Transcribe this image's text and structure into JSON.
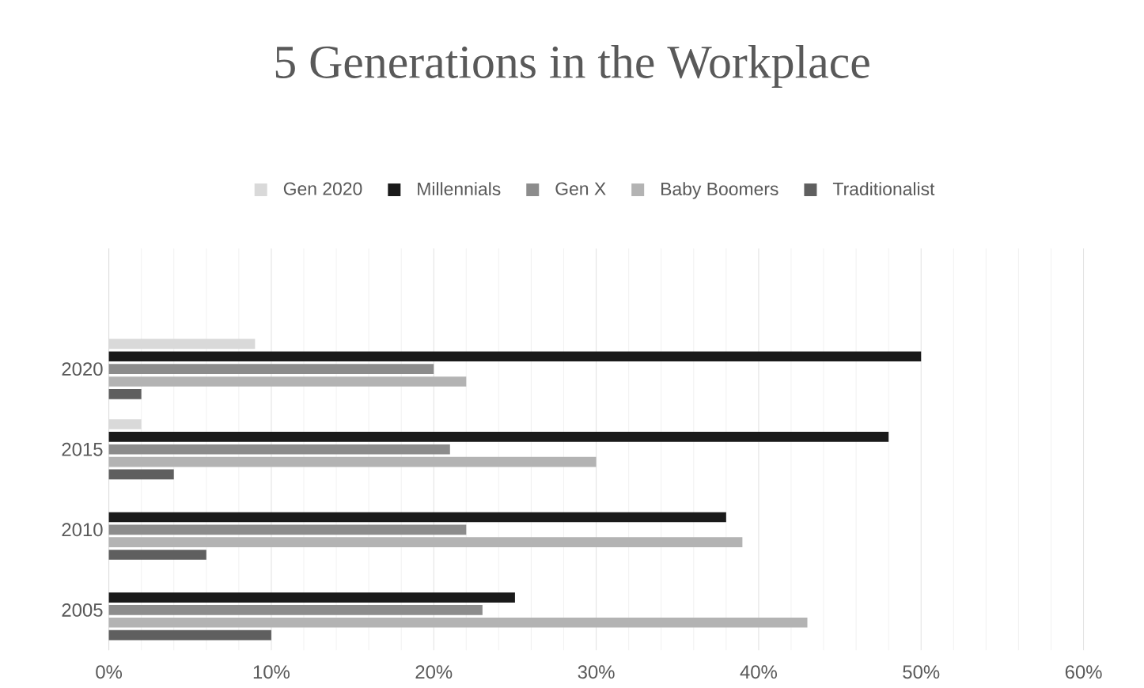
{
  "chart_data": {
    "type": "bar",
    "orientation": "horizontal",
    "title": "5 Generations in the Workplace",
    "categories": [
      null,
      "2020",
      "2015",
      "2010",
      "2005"
    ],
    "series": [
      {
        "name": "Gen 2020",
        "color": "#d9d9d9",
        "values": [
          null,
          9,
          2,
          null,
          null
        ]
      },
      {
        "name": "Millennials",
        "color": "#1a1a1a",
        "values": [
          null,
          50,
          48,
          38,
          25
        ]
      },
      {
        "name": "Gen X",
        "color": "#8c8c8c",
        "values": [
          null,
          20,
          21,
          22,
          23
        ]
      },
      {
        "name": "Baby Boomers",
        "color": "#b3b3b3",
        "values": [
          null,
          22,
          30,
          39,
          43
        ]
      },
      {
        "name": "Traditionalist",
        "color": "#5f5f5f",
        "values": [
          null,
          2,
          4,
          6,
          10
        ]
      }
    ],
    "xlim": [
      0,
      60
    ],
    "xticks": [
      {
        "value": 0,
        "label": "0%"
      },
      {
        "value": 2,
        "label": null
      },
      {
        "value": 4,
        "label": null
      },
      {
        "value": 6,
        "label": null
      },
      {
        "value": 8,
        "label": null
      },
      {
        "value": 10,
        "label": "10%"
      },
      {
        "value": 12,
        "label": null
      },
      {
        "value": 14,
        "label": null
      },
      {
        "value": 16,
        "label": null
      },
      {
        "value": 18,
        "label": null
      },
      {
        "value": 20,
        "label": "20%"
      },
      {
        "value": 22,
        "label": null
      },
      {
        "value": 24,
        "label": null
      },
      {
        "value": 26,
        "label": null
      },
      {
        "value": 28,
        "label": null
      },
      {
        "value": 30,
        "label": "30%"
      },
      {
        "value": 32,
        "label": null
      },
      {
        "value": 34,
        "label": null
      },
      {
        "value": 36,
        "label": null
      },
      {
        "value": 38,
        "label": null
      },
      {
        "value": 40,
        "label": "40%"
      },
      {
        "value": 42,
        "label": null
      },
      {
        "value": 44,
        "label": null
      },
      {
        "value": 46,
        "label": null
      },
      {
        "value": 48,
        "label": null
      },
      {
        "value": 50,
        "label": "50%"
      },
      {
        "value": 52,
        "label": null
      },
      {
        "value": 54,
        "label": null
      },
      {
        "value": 56,
        "label": null
      },
      {
        "value": 58,
        "label": null
      },
      {
        "value": 60,
        "label": "60%"
      }
    ],
    "grid": "x",
    "legend": "top"
  }
}
